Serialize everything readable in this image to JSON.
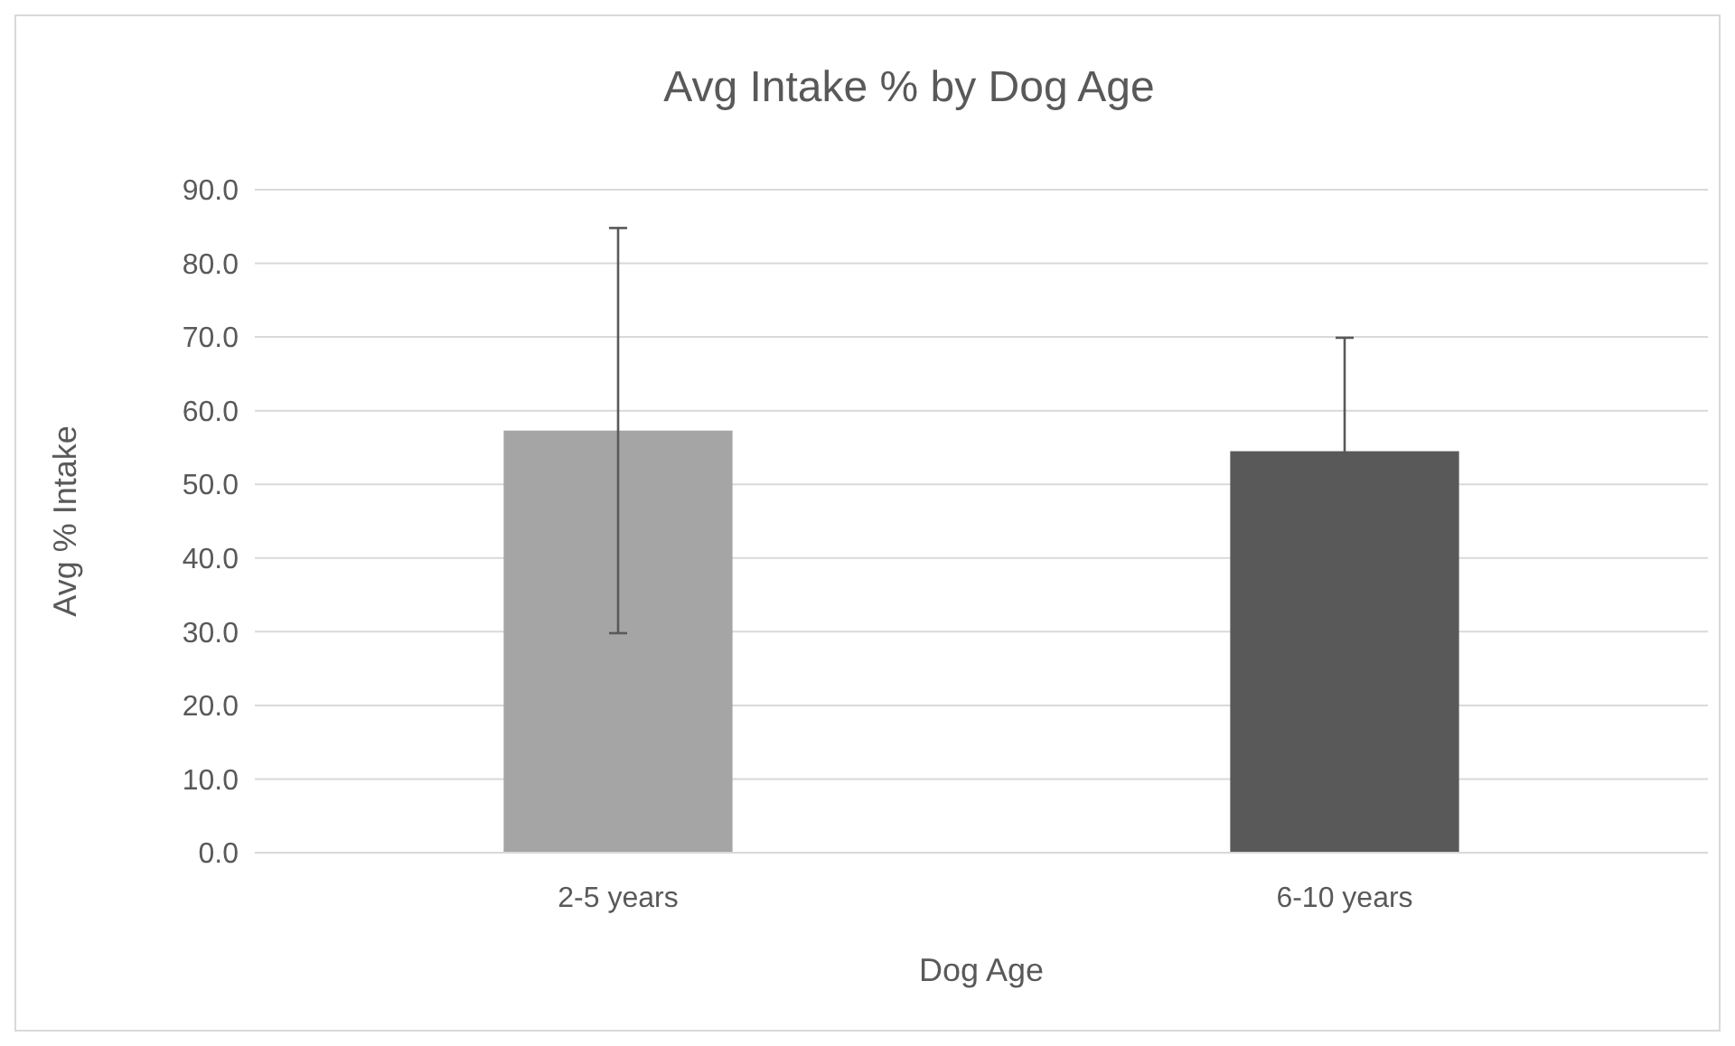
{
  "chart_data": {
    "type": "bar",
    "title": "Avg Intake % by Dog Age",
    "xlabel": "Dog Age",
    "ylabel": "Avg % Intake",
    "categories": [
      "2-5 years",
      "6-10 years"
    ],
    "values": [
      57.3,
      54.5
    ],
    "colors": [
      "#a5a5a5",
      "#595959"
    ],
    "errors": [
      27.5,
      15.4
    ],
    "ylim": [
      0,
      90
    ],
    "yticks": [
      {
        "value": 0,
        "label": "0.0"
      },
      {
        "value": 10,
        "label": "10.0"
      },
      {
        "value": 20,
        "label": "20.0"
      },
      {
        "value": 30,
        "label": "30.0"
      },
      {
        "value": 40,
        "label": "40.0"
      },
      {
        "value": 50,
        "label": "50.0"
      },
      {
        "value": 60,
        "label": "60.0"
      },
      {
        "value": 70,
        "label": "70.0"
      },
      {
        "value": 80,
        "label": "80.0"
      },
      {
        "value": 90,
        "label": "90.0"
      }
    ],
    "grid": "y"
  }
}
